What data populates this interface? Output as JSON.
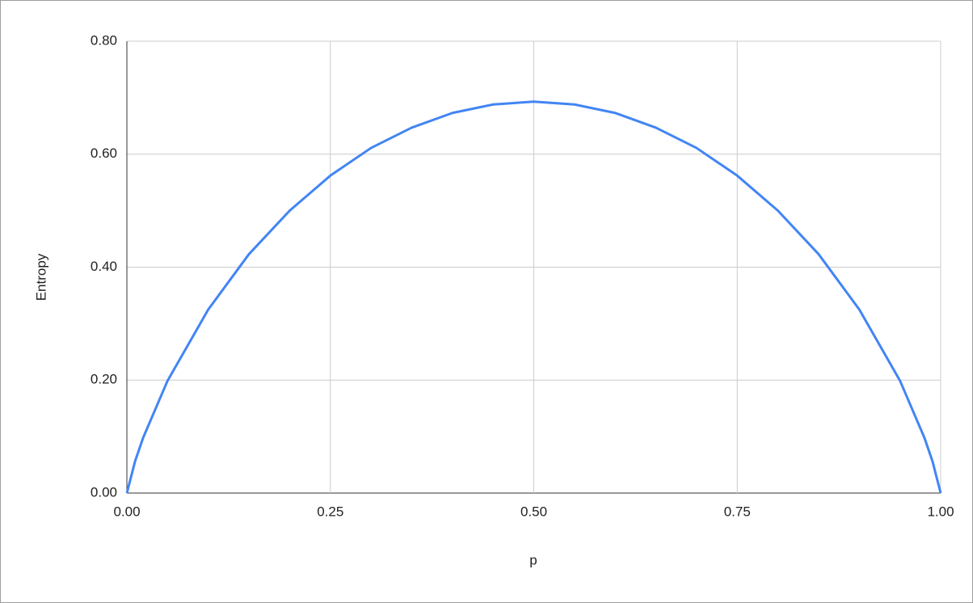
{
  "chart_data": {
    "type": "line",
    "x_label": "p",
    "y_label": "Entropy",
    "x": [
      0,
      0.01,
      0.02,
      0.05,
      0.1,
      0.15,
      0.2,
      0.25,
      0.3,
      0.35,
      0.4,
      0.45,
      0.5,
      0.55,
      0.6,
      0.65,
      0.7,
      0.75,
      0.8,
      0.85,
      0.9,
      0.95,
      0.98,
      0.99,
      1
    ],
    "series": [
      {
        "color": "#4285f4",
        "values": [
          0,
          0.056,
          0.098,
          0.199,
          0.325,
          0.423,
          0.5,
          0.562,
          0.611,
          0.647,
          0.673,
          0.688,
          0.693,
          0.688,
          0.673,
          0.647,
          0.611,
          0.562,
          0.5,
          0.423,
          0.325,
          0.199,
          0.098,
          0.056,
          0
        ]
      }
    ],
    "xlim": [
      0,
      1
    ],
    "xticks": [
      {
        "value": 0,
        "label": "0.00"
      },
      {
        "value": 0.25,
        "label": "0.25"
      },
      {
        "value": 0.5,
        "label": "0.50"
      },
      {
        "value": 0.75,
        "label": "0.75"
      },
      {
        "value": 1,
        "label": "1.00"
      }
    ],
    "ylim": [
      0,
      0.8
    ],
    "yticks": [
      {
        "value": 0,
        "label": "0.00"
      },
      {
        "value": 0.2,
        "label": "0.20"
      },
      {
        "value": 0.4,
        "label": "0.40"
      },
      {
        "value": 0.6,
        "label": "0.60"
      },
      {
        "value": 0.8,
        "label": "0.80"
      }
    ],
    "grid": true
  }
}
